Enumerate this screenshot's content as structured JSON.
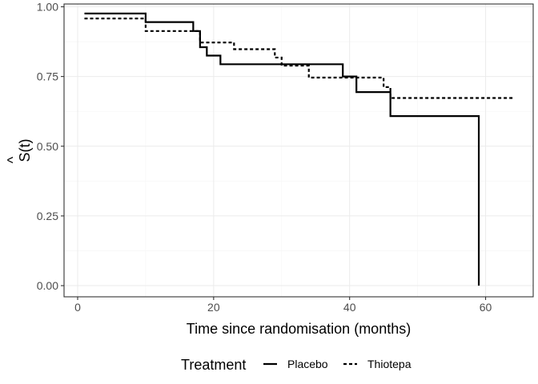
{
  "chart_data": {
    "type": "line",
    "title": "",
    "xlabel": "Time since randomisation (months)",
    "ylabel": "S(t)",
    "ylabel_hat": "^",
    "xlim": [
      -2,
      67
    ],
    "ylim": [
      -0.04,
      1.01
    ],
    "x_ticks": [
      0,
      20,
      40,
      60
    ],
    "y_ticks": [
      0.0,
      0.25,
      0.5,
      0.75,
      1.0
    ],
    "x_tick_labels": [
      "0",
      "20",
      "40",
      "60"
    ],
    "y_tick_labels": [
      "0.00",
      "0.25",
      "0.50",
      "0.75",
      "1.00"
    ],
    "grid": true,
    "legend": {
      "title": "Treatment",
      "position": "bottom"
    },
    "series": [
      {
        "name": "Placebo",
        "linetype": "solid",
        "color": "#000000",
        "steps": [
          [
            1,
            0.976
          ],
          [
            10,
            0.945
          ],
          [
            17,
            0.913
          ],
          [
            18,
            0.855
          ],
          [
            19,
            0.825
          ],
          [
            21,
            0.794
          ],
          [
            39,
            0.75
          ],
          [
            41,
            0.694
          ],
          [
            46,
            0.608
          ],
          [
            59,
            0.0
          ]
        ],
        "end_x": 59
      },
      {
        "name": "Thiotepa",
        "linetype": "dashed",
        "color": "#000000",
        "steps": [
          [
            1,
            0.958
          ],
          [
            10,
            0.913
          ],
          [
            18,
            0.872
          ],
          [
            23,
            0.848
          ],
          [
            29,
            0.818
          ],
          [
            30,
            0.789
          ],
          [
            34,
            0.746
          ],
          [
            45,
            0.712
          ],
          [
            46,
            0.673
          ]
        ],
        "end_x": 64
      }
    ]
  }
}
